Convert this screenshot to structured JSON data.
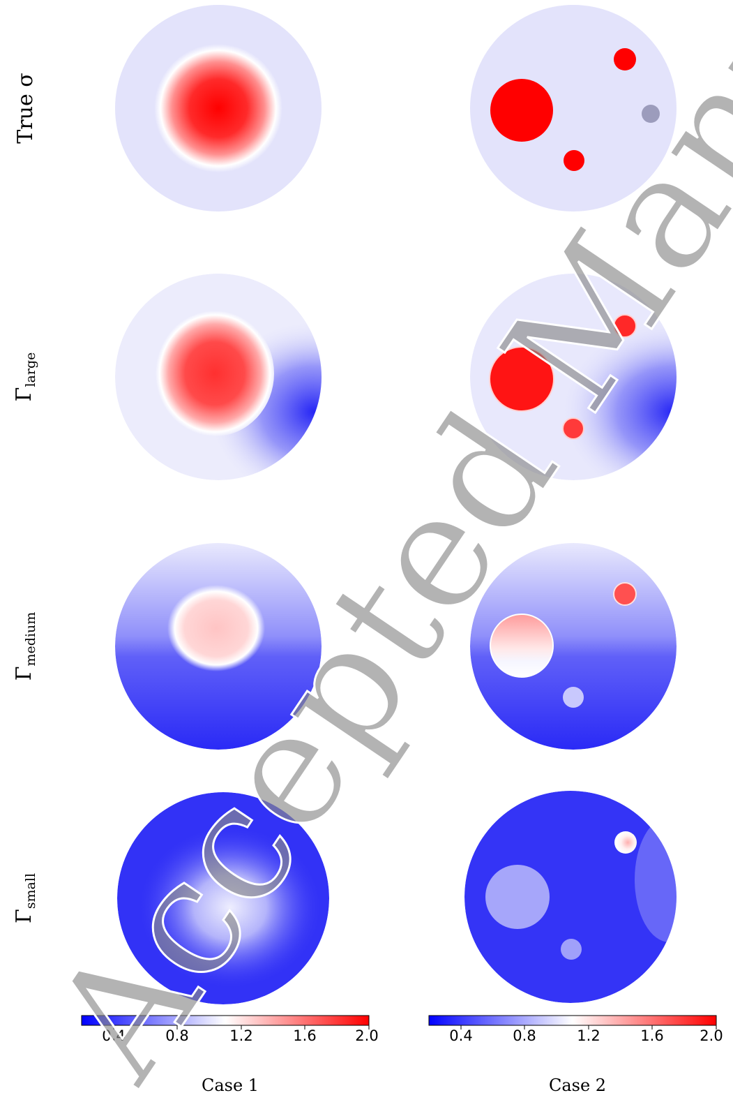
{
  "rows": [
    {
      "label": "True σ",
      "sub": ""
    },
    {
      "label": "Γ",
      "sub": "large"
    },
    {
      "label": "Γ",
      "sub": "medium"
    },
    {
      "label": "Γ",
      "sub": "small"
    }
  ],
  "columns": [
    "Case 1",
    "Case 2"
  ],
  "colorbar": {
    "colormap": "bwr",
    "range": [
      0.2,
      2.0
    ],
    "ticks": [
      "0.4",
      "0.8",
      "1.2",
      "1.6",
      "2.0"
    ]
  },
  "watermark": "Accepted Manuscript",
  "colors": {
    "background_sigma": "#e3e3fb",
    "inclusion_high": "#ff0000",
    "low_blue": "#2a2af6",
    "gray_inclusion": "#9c9cbc"
  }
}
